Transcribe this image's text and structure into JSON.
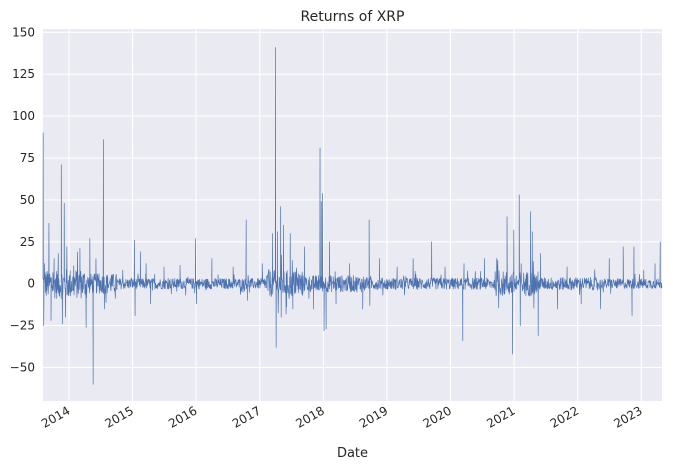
{
  "chart_data": {
    "type": "line",
    "title": "Returns of XRP",
    "xlabel": "Date",
    "ylabel": "",
    "x_range": [
      "2013-08-05",
      "2023-04-30"
    ],
    "ylim": [
      -70,
      152
    ],
    "yticks": [
      150,
      125,
      100,
      75,
      50,
      25,
      0,
      -25,
      -50
    ],
    "ytick_labels": [
      "150",
      "125",
      "100",
      "75",
      "50",
      "25",
      "0",
      "−25",
      "−50"
    ],
    "xticks": [
      "2014-01-01",
      "2015-01-01",
      "2016-01-01",
      "2017-01-01",
      "2018-01-01",
      "2019-01-01",
      "2020-01-01",
      "2021-01-01",
      "2022-01-01",
      "2023-01-01"
    ],
    "xtick_labels": [
      "2014",
      "2015",
      "2016",
      "2017",
      "2018",
      "2019",
      "2020",
      "2021",
      "2022",
      "2023"
    ],
    "grid": true,
    "background_color": "#EAEAF2",
    "grid_color": "#FFFFFF",
    "series": [
      {
        "color": "#4C72B0",
        "points": [
          [
            "2013-08-06",
            90
          ],
          [
            "2013-08-09",
            -25
          ],
          [
            "2013-08-13",
            12
          ],
          [
            "2013-09-08",
            36
          ],
          [
            "2013-09-20",
            -22
          ],
          [
            "2013-10-08",
            15
          ],
          [
            "2013-11-01",
            18
          ],
          [
            "2013-11-18",
            71
          ],
          [
            "2013-11-24",
            -24
          ],
          [
            "2013-12-05",
            48
          ],
          [
            "2013-12-12",
            -20
          ],
          [
            "2013-12-20",
            22
          ],
          [
            "2014-03-05",
            21
          ],
          [
            "2014-04-10",
            -26
          ],
          [
            "2014-05-01",
            27
          ],
          [
            "2014-05-20",
            -60
          ],
          [
            "2014-06-05",
            15
          ],
          [
            "2014-07-18",
            86
          ],
          [
            "2014-07-25",
            -15
          ],
          [
            "2014-09-01",
            5
          ],
          [
            "2014-11-06",
            8
          ],
          [
            "2015-01-12",
            26
          ],
          [
            "2015-01-16",
            -19
          ],
          [
            "2015-02-15",
            19
          ],
          [
            "2015-03-20",
            12
          ],
          [
            "2015-04-15",
            -12
          ],
          [
            "2015-07-01",
            10
          ],
          [
            "2015-10-01",
            11
          ],
          [
            "2015-12-29",
            27
          ],
          [
            "2016-01-03",
            -12
          ],
          [
            "2016-04-01",
            15
          ],
          [
            "2016-08-01",
            10
          ],
          [
            "2016-10-15",
            38
          ],
          [
            "2016-10-22",
            -10
          ],
          [
            "2017-01-15",
            12
          ],
          [
            "2017-03-15",
            30
          ],
          [
            "2017-04-02",
            141
          ],
          [
            "2017-04-05",
            -38
          ],
          [
            "2017-04-12",
            31
          ],
          [
            "2017-05-01",
            46
          ],
          [
            "2017-05-04",
            -20
          ],
          [
            "2017-05-17",
            35
          ],
          [
            "2017-06-01",
            -18
          ],
          [
            "2017-06-25",
            30
          ],
          [
            "2017-07-10",
            -15
          ],
          [
            "2017-09-15",
            22
          ],
          [
            "2017-11-05",
            -15
          ],
          [
            "2017-12-13",
            81
          ],
          [
            "2017-12-20",
            49
          ],
          [
            "2017-12-28",
            54
          ],
          [
            "2018-01-05",
            -28
          ],
          [
            "2018-01-17",
            -27
          ],
          [
            "2018-02-06",
            25
          ],
          [
            "2018-03-15",
            -12
          ],
          [
            "2018-06-01",
            12
          ],
          [
            "2018-08-15",
            -15
          ],
          [
            "2018-09-21",
            38
          ],
          [
            "2018-09-25",
            -13
          ],
          [
            "2018-11-20",
            15
          ],
          [
            "2019-03-01",
            10
          ],
          [
            "2019-06-01",
            15
          ],
          [
            "2019-09-15",
            25
          ],
          [
            "2019-12-01",
            10
          ],
          [
            "2020-03-12",
            -34
          ],
          [
            "2020-03-19",
            12
          ],
          [
            "2020-07-15",
            15
          ],
          [
            "2020-11-21",
            40
          ],
          [
            "2020-12-23",
            -42
          ],
          [
            "2020-12-30",
            32
          ],
          [
            "2021-01-30",
            53
          ],
          [
            "2021-02-05",
            -25
          ],
          [
            "2021-02-10",
            12
          ],
          [
            "2021-04-05",
            43
          ],
          [
            "2021-04-15",
            31
          ],
          [
            "2021-05-19",
            -31
          ],
          [
            "2021-06-01",
            18
          ],
          [
            "2021-09-07",
            -15
          ],
          [
            "2021-11-01",
            10
          ],
          [
            "2022-01-21",
            -12
          ],
          [
            "2022-05-12",
            -15
          ],
          [
            "2022-07-01",
            15
          ],
          [
            "2022-09-19",
            22
          ],
          [
            "2022-11-09",
            -19
          ],
          [
            "2022-11-20",
            22
          ],
          [
            "2023-01-15",
            8
          ],
          [
            "2023-03-21",
            12
          ],
          [
            "2023-04-20",
            25
          ]
        ]
      }
    ]
  }
}
